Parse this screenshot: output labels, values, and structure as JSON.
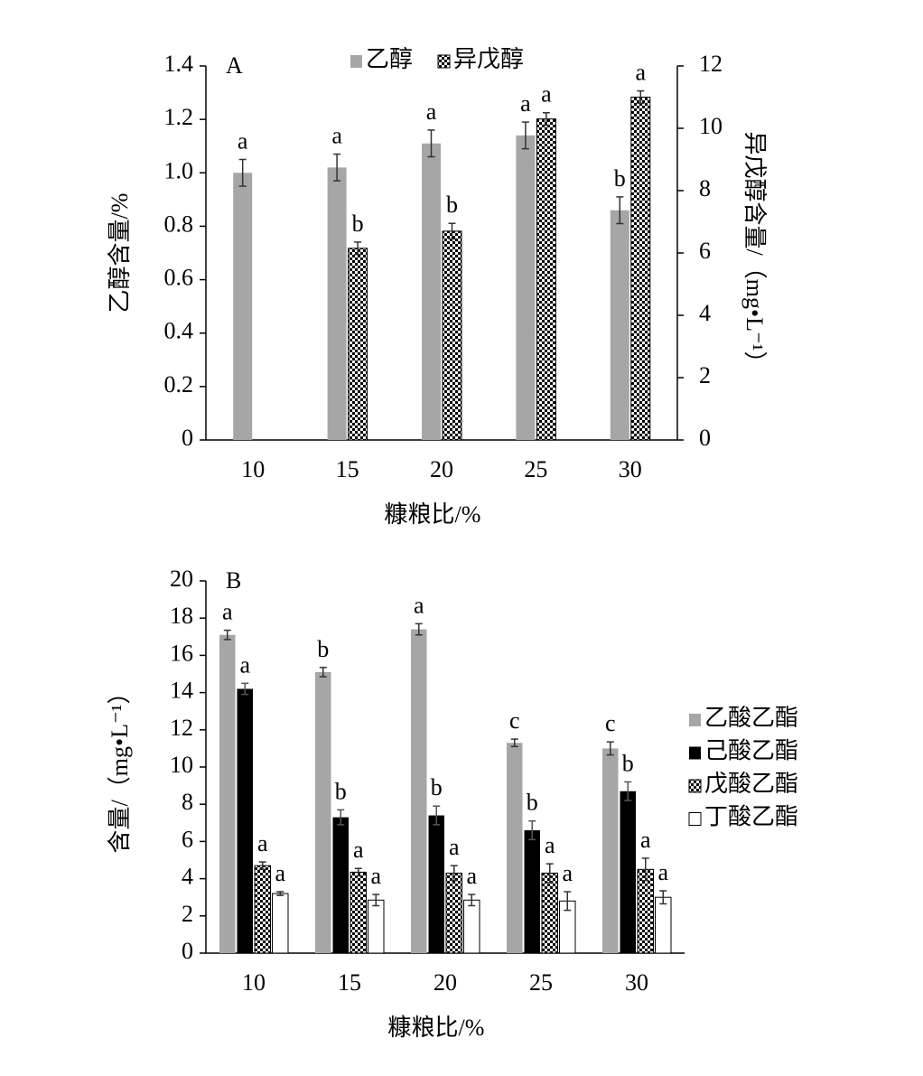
{
  "chart_data": [
    {
      "type": "bar",
      "title": "A",
      "legend": "top",
      "categories": [
        "10",
        "15",
        "20",
        "25",
        "30"
      ],
      "xlabel": "糠粮比/%",
      "ylabel": "乙醇含量/%",
      "y2label": "异戊醇含量/（mg•L⁻¹）",
      "ylim": [
        0,
        1.4
      ],
      "yticks": [
        0,
        0.2,
        0.4,
        0.6,
        0.8,
        {
          "value": 1,
          "label": "1.0"
        },
        1.2,
        1.4
      ],
      "y2lim": [
        0,
        12
      ],
      "y2ticks": [
        0,
        2,
        4,
        6,
        8,
        10,
        12
      ],
      "series": [
        {
          "name": "乙醇",
          "color": "#a6a6a6",
          "values": [
            1.0,
            1.02,
            1.11,
            1.14,
            0.86
          ],
          "errors": [
            0.05,
            0.05,
            0.05,
            0.05,
            0.05
          ],
          "labels": [
            "a",
            "a",
            "a",
            "a",
            "b"
          ]
        },
        {
          "name": "异戊醇",
          "color": "#000000",
          "pattern": "checker",
          "axis": "y2",
          "values": [
            null,
            6.15,
            6.7,
            10.3,
            11.0
          ],
          "errors": [
            null,
            0.2,
            0.25,
            0.2,
            0.2
          ],
          "labels": [
            null,
            "b",
            "b",
            "a",
            "a"
          ]
        }
      ]
    },
    {
      "type": "bar",
      "title": "B",
      "legend": "right",
      "categories": [
        "10",
        "15",
        "20",
        "25",
        "30"
      ],
      "xlabel": "糠粮比/%",
      "ylabel": "含量/（mg•L⁻¹）",
      "ylim": [
        0,
        20
      ],
      "yticks": [
        0,
        2,
        4,
        6,
        8,
        10,
        12,
        14,
        16,
        18,
        20
      ],
      "series": [
        {
          "name": "乙酸乙酯",
          "color": "#a6a6a6",
          "values": [
            17.1,
            15.1,
            17.4,
            11.3,
            11.0
          ],
          "errors": [
            0.25,
            0.25,
            0.3,
            0.2,
            0.35
          ],
          "labels": [
            "a",
            "b",
            "a",
            "c",
            "c"
          ]
        },
        {
          "name": "己酸乙酯",
          "color": "#000000",
          "values": [
            14.2,
            7.3,
            7.4,
            6.6,
            8.7
          ],
          "errors": [
            0.3,
            0.4,
            0.5,
            0.5,
            0.5
          ],
          "labels": [
            "a",
            "b",
            "b",
            "b",
            "b"
          ]
        },
        {
          "name": "戊酸乙酯",
          "color": "#000000",
          "pattern": "checker",
          "values": [
            4.7,
            4.35,
            4.3,
            4.3,
            4.5
          ],
          "errors": [
            0.2,
            0.2,
            0.4,
            0.5,
            0.6
          ],
          "labels": [
            "a",
            "a",
            "a",
            "a",
            "a"
          ]
        },
        {
          "name": "丁酸乙酯",
          "color": "#ffffff",
          "values": [
            3.2,
            2.85,
            2.85,
            2.8,
            3.0
          ],
          "errors": [
            0.1,
            0.3,
            0.3,
            0.5,
            0.35
          ],
          "labels": [
            "a",
            "a",
            "a",
            "a",
            "a"
          ]
        }
      ]
    }
  ]
}
